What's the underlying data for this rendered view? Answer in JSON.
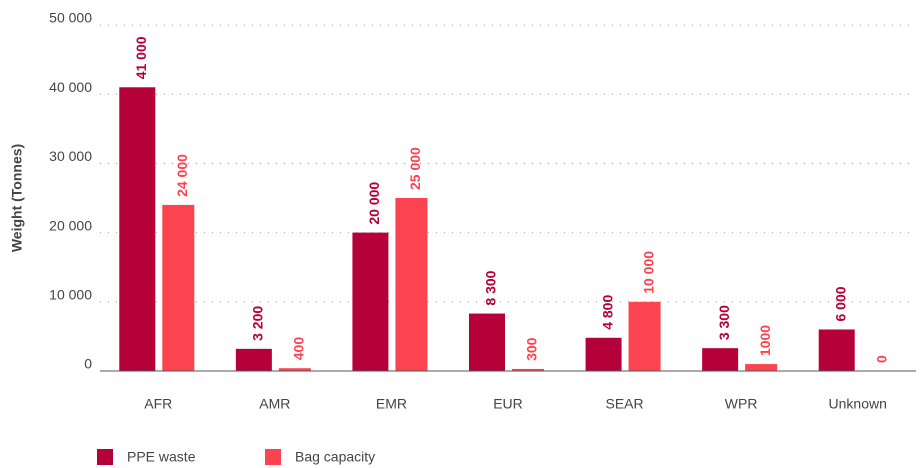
{
  "chart_data": {
    "type": "bar",
    "y_label": "Weight (Tonnes)",
    "categories": [
      "AFR",
      "AMR",
      "EMR",
      "EUR",
      "SEAR",
      "WPR",
      "Unknown"
    ],
    "series": [
      {
        "name": "PPE waste",
        "color": "#b5003a",
        "values": [
          41000,
          3200,
          20000,
          8300,
          4800,
          3300,
          6000
        ],
        "value_labels": [
          "41 000",
          "3 200",
          "20 000",
          "8 300",
          "4 800",
          "3 300",
          "6 000"
        ]
      },
      {
        "name": "Bag capacity",
        "color": "#fb444f",
        "values": [
          24000,
          400,
          25000,
          300,
          10000,
          1000,
          0
        ],
        "value_labels": [
          "24 000",
          "400",
          "25 000",
          "300",
          "10 000",
          "1000",
          "0"
        ]
      }
    ],
    "ylim": [
      0,
      50000
    ],
    "yticks": [
      0,
      {
        "value": 10000,
        "label": "10 000"
      },
      {
        "value": 20000,
        "label": "20 000"
      },
      {
        "value": 30000,
        "label": "30 000"
      },
      {
        "value": 40000,
        "label": "40 000"
      },
      {
        "value": 50000,
        "label": "50 000"
      }
    ],
    "grid": true,
    "legend": "bottom-left"
  }
}
